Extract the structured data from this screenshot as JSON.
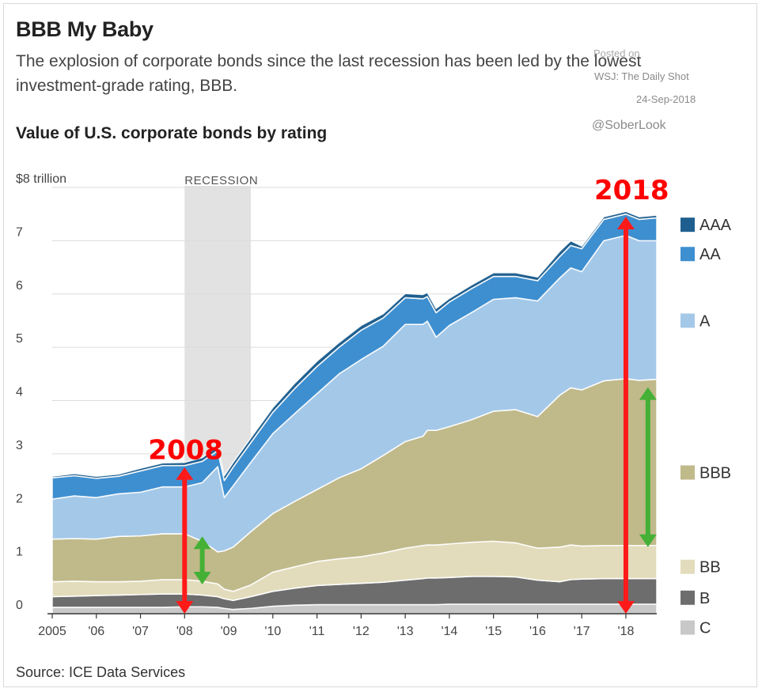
{
  "header": {
    "title": "BBB My Baby",
    "subtitle": "The explosion of corporate bonds since the last recession has been led by the lowest investment-grade rating, BBB.",
    "chart_title": "Value of U.S. corporate bonds by rating"
  },
  "credit": {
    "posted": "Posted on",
    "source": "WSJ: The Daily Shot",
    "date": "24-Sep-2018",
    "handle": "@SoberLook"
  },
  "footer": {
    "source": "Source: ICE Data Services"
  },
  "colors": {
    "C": "#c8c8c8",
    "B": "#6d6d6d",
    "BB": "#e2dcbc",
    "BBB": "#c0b98a",
    "A": "#a4c8e8",
    "AA": "#3e8fd0",
    "AAA": "#1f5f8f",
    "recession": "#e2e2e2",
    "annotation_red": "#ff1a1a",
    "annotation_green": "#44b036"
  },
  "chart_data": {
    "type": "area",
    "stacked": true,
    "title": "Value of U.S. corporate bonds by rating",
    "xlabel": "",
    "ylabel": "",
    "xlim": [
      2005,
      2018.7
    ],
    "ylim": [
      0,
      8
    ],
    "y_unit_label": "$8 trillion",
    "x_ticks": [
      {
        "value": 2005,
        "label": "2005"
      },
      {
        "value": 2006,
        "label": "'06"
      },
      {
        "value": 2007,
        "label": "'07"
      },
      {
        "value": 2008,
        "label": "'08"
      },
      {
        "value": 2009,
        "label": "'09"
      },
      {
        "value": 2010,
        "label": "'10"
      },
      {
        "value": 2011,
        "label": "'11"
      },
      {
        "value": 2012,
        "label": "'12"
      },
      {
        "value": 2013,
        "label": "'13"
      },
      {
        "value": 2014,
        "label": "'14"
      },
      {
        "value": 2015,
        "label": "'15"
      },
      {
        "value": 2016,
        "label": "'16"
      },
      {
        "value": 2017,
        "label": "'17"
      },
      {
        "value": 2018,
        "label": "'18"
      }
    ],
    "y_ticks": [
      {
        "value": 0,
        "label": "0"
      },
      {
        "value": 1,
        "label": "1"
      },
      {
        "value": 2,
        "label": "2"
      },
      {
        "value": 3,
        "label": "3"
      },
      {
        "value": 4,
        "label": "4"
      },
      {
        "value": 5,
        "label": "5"
      },
      {
        "value": 6,
        "label": "6"
      },
      {
        "value": 7,
        "label": "7"
      },
      {
        "value": 8,
        "label": "$8 trillion"
      }
    ],
    "grid": true,
    "legend_position": "right",
    "recession": {
      "start": 2008.0,
      "end": 2009.5,
      "label": "RECESSION"
    },
    "x": [
      2005.0,
      2005.5,
      2006.0,
      2006.5,
      2007.0,
      2007.5,
      2008.0,
      2008.4,
      2008.75,
      2008.9,
      2009.1,
      2009.5,
      2010.0,
      2010.5,
      2011.0,
      2011.5,
      2012.0,
      2012.5,
      2013.0,
      2013.4,
      2013.5,
      2013.7,
      2014.0,
      2014.5,
      2015.0,
      2015.5,
      2016.0,
      2016.5,
      2016.75,
      2017.0,
      2017.5,
      2018.0,
      2018.3,
      2018.7
    ],
    "series": [
      {
        "name": "C",
        "values": [
          0.12,
          0.12,
          0.12,
          0.12,
          0.12,
          0.12,
          0.13,
          0.13,
          0.12,
          0.1,
          0.08,
          0.1,
          0.14,
          0.16,
          0.17,
          0.17,
          0.17,
          0.17,
          0.17,
          0.17,
          0.17,
          0.17,
          0.18,
          0.18,
          0.18,
          0.18,
          0.18,
          0.18,
          0.18,
          0.18,
          0.18,
          0.18,
          0.18,
          0.18
        ]
      },
      {
        "name": "B",
        "values": [
          0.2,
          0.21,
          0.22,
          0.23,
          0.24,
          0.25,
          0.24,
          0.22,
          0.2,
          0.18,
          0.17,
          0.22,
          0.28,
          0.32,
          0.36,
          0.38,
          0.4,
          0.42,
          0.46,
          0.49,
          0.5,
          0.5,
          0.5,
          0.52,
          0.52,
          0.51,
          0.45,
          0.42,
          0.46,
          0.47,
          0.48,
          0.48,
          0.48,
          0.48
        ]
      },
      {
        "name": "BB",
        "values": [
          0.28,
          0.28,
          0.26,
          0.25,
          0.25,
          0.27,
          0.27,
          0.26,
          0.24,
          0.18,
          0.17,
          0.22,
          0.36,
          0.4,
          0.45,
          0.48,
          0.5,
          0.55,
          0.6,
          0.62,
          0.62,
          0.62,
          0.63,
          0.64,
          0.66,
          0.64,
          0.6,
          0.65,
          0.65,
          0.62,
          0.62,
          0.62,
          0.62,
          0.62
        ]
      },
      {
        "name": "BBB",
        "values": [
          0.8,
          0.8,
          0.8,
          0.85,
          0.85,
          0.86,
          0.86,
          0.75,
          0.6,
          0.72,
          0.83,
          1.0,
          1.1,
          1.23,
          1.35,
          1.52,
          1.65,
          1.83,
          2.0,
          2.05,
          2.15,
          2.15,
          2.2,
          2.3,
          2.44,
          2.5,
          2.47,
          2.85,
          2.95,
          2.93,
          3.09,
          3.13,
          3.1,
          3.12
        ]
      },
      {
        "name": "A",
        "values": [
          0.75,
          0.8,
          0.78,
          0.8,
          0.82,
          0.88,
          0.88,
          1.1,
          1.6,
          1.0,
          1.15,
          1.3,
          1.5,
          1.65,
          1.8,
          1.95,
          2.05,
          2.05,
          2.2,
          2.1,
          2.05,
          1.75,
          1.9,
          2.01,
          2.1,
          2.1,
          2.17,
          2.2,
          2.25,
          2.22,
          2.63,
          2.69,
          2.62,
          2.6
        ]
      },
      {
        "name": "AA",
        "values": [
          0.4,
          0.38,
          0.36,
          0.33,
          0.4,
          0.4,
          0.4,
          0.4,
          0.3,
          0.32,
          0.35,
          0.37,
          0.4,
          0.47,
          0.51,
          0.5,
          0.55,
          0.53,
          0.5,
          0.48,
          0.46,
          0.46,
          0.44,
          0.45,
          0.43,
          0.4,
          0.38,
          0.4,
          0.42,
          0.43,
          0.4,
          0.4,
          0.4,
          0.43
        ]
      },
      {
        "name": "AAA",
        "values": [
          0.03,
          0.04,
          0.04,
          0.04,
          0.05,
          0.05,
          0.06,
          0.07,
          0.09,
          0.09,
          0.09,
          0.09,
          0.09,
          0.1,
          0.1,
          0.09,
          0.09,
          0.08,
          0.08,
          0.08,
          0.08,
          0.08,
          0.07,
          0.07,
          0.07,
          0.07,
          0.07,
          0.1,
          0.09,
          0.05,
          0.05,
          0.05,
          0.05,
          0.05
        ]
      }
    ],
    "annotations": [
      {
        "text": "2008",
        "color": "red",
        "arrow_x": 2008.0,
        "arrow_from": 0,
        "arrow_to": 2.75
      },
      {
        "text": "",
        "color": "green",
        "arrow_x": 2008.4,
        "arrow_from": 0.55,
        "arrow_to": 1.45
      },
      {
        "text": "2018",
        "color": "red",
        "arrow_x": 2018.0,
        "arrow_from": 0,
        "arrow_to": 7.45
      },
      {
        "text": "",
        "color": "green",
        "arrow_x": 2018.5,
        "arrow_from": 1.25,
        "arrow_to": 4.25
      }
    ]
  }
}
